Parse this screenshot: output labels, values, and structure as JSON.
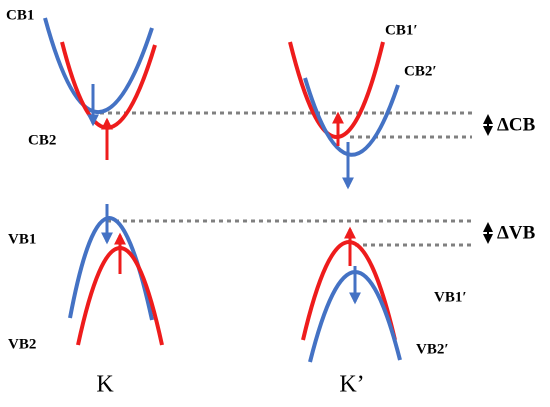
{
  "k_valley": {
    "label": "K",
    "cb1": "CB1",
    "cb2": "CB2",
    "vb1": "VB1",
    "vb2": "VB2"
  },
  "k_prime_valley": {
    "label": "K’",
    "cb1": "CB1′",
    "cb2": "CB2′",
    "vb1": "VB1′",
    "vb2": "VB2′"
  },
  "splittings": {
    "delta_cb": "ΔCB",
    "delta_vb": "ΔVB"
  }
}
